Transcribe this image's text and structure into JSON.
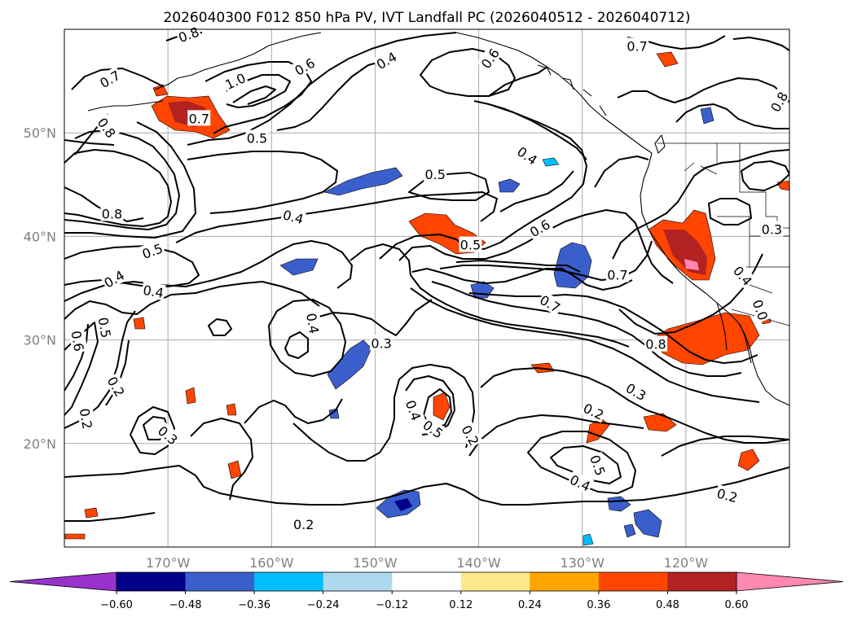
{
  "chart_data": {
    "type": "contour-map",
    "title": "2026040300 F012 850 hPa PV, IVT Landfall PC (2026040512 - 2026040712)",
    "lon_range": [
      -180,
      -110
    ],
    "lat_range": [
      10,
      60
    ],
    "lon_ticks": [
      {
        "lon": -170,
        "label": "170°W"
      },
      {
        "lon": -160,
        "label": "160°W"
      },
      {
        "lon": -150,
        "label": "150°W"
      },
      {
        "lon": -140,
        "label": "140°W"
      },
      {
        "lon": -130,
        "label": "130°W"
      },
      {
        "lon": -120,
        "label": "120°W"
      }
    ],
    "lat_ticks": [
      {
        "lat": 20,
        "label": "20°N"
      },
      {
        "lat": 30,
        "label": "30°N"
      },
      {
        "lat": 40,
        "label": "40°N"
      },
      {
        "lat": 50,
        "label": "50°N"
      }
    ],
    "contour_labels": [
      {
        "text": "0.8",
        "lon": -168,
        "lat": 59.5,
        "angle": -20
      },
      {
        "text": "0.7",
        "lon": -175.6,
        "lat": 55.2,
        "angle": -30
      },
      {
        "text": "1.0",
        "lon": -163.5,
        "lat": 55.0,
        "angle": -25
      },
      {
        "text": "0.6",
        "lon": -156.8,
        "lat": 56.4,
        "angle": -30
      },
      {
        "text": "0.4",
        "lon": -148.9,
        "lat": 57.0,
        "angle": -30
      },
      {
        "text": "0.6",
        "lon": -138.9,
        "lat": 57.2,
        "angle": -55
      },
      {
        "text": "0.7",
        "lon": -124.7,
        "lat": 58.4,
        "angle": 0
      },
      {
        "text": "0.8",
        "lon": -111.0,
        "lat": 53.0,
        "angle": -60
      },
      {
        "text": "0.7",
        "lon": -167.0,
        "lat": 51.4,
        "angle": 0
      },
      {
        "text": "0.8",
        "lon": -175.9,
        "lat": 50.5,
        "angle": 55
      },
      {
        "text": "0.5",
        "lon": -161.4,
        "lat": 49.5,
        "angle": 0
      },
      {
        "text": "0.4",
        "lon": -135.3,
        "lat": 47.8,
        "angle": 35
      },
      {
        "text": "0.5",
        "lon": -144.2,
        "lat": 46.0,
        "angle": 0
      },
      {
        "text": "0.8",
        "lon": -175.4,
        "lat": 42.2,
        "angle": 0
      },
      {
        "text": "0.4",
        "lon": -157.9,
        "lat": 41.9,
        "angle": 15
      },
      {
        "text": "0.3",
        "lon": -111.7,
        "lat": 40.7,
        "angle": 0
      },
      {
        "text": "0.6",
        "lon": -134.1,
        "lat": 40.8,
        "angle": -30
      },
      {
        "text": "0.5",
        "lon": -171.5,
        "lat": 38.6,
        "angle": -20
      },
      {
        "text": "0.5",
        "lon": -140.8,
        "lat": 39.2,
        "angle": 0
      },
      {
        "text": "0.4",
        "lon": -175.2,
        "lat": 35.9,
        "angle": -30
      },
      {
        "text": "0.4",
        "lon": -171.4,
        "lat": 34.7,
        "angle": 10
      },
      {
        "text": "0.7",
        "lon": -126.6,
        "lat": 36.3,
        "angle": 0
      },
      {
        "text": "0.4",
        "lon": -114.5,
        "lat": 36.2,
        "angle": 50
      },
      {
        "text": "0.7",
        "lon": -133.1,
        "lat": 33.5,
        "angle": 30
      },
      {
        "text": "0.0",
        "lon": -112.8,
        "lat": 32.9,
        "angle": 70
      },
      {
        "text": "0.5",
        "lon": -176.1,
        "lat": 31.2,
        "angle": 80
      },
      {
        "text": "0.6",
        "lon": -178.7,
        "lat": 29.9,
        "angle": 80
      },
      {
        "text": "0.4",
        "lon": -156.0,
        "lat": 31.6,
        "angle": 80
      },
      {
        "text": "0.3",
        "lon": -149.4,
        "lat": 29.7,
        "angle": 0
      },
      {
        "text": "0.8",
        "lon": -122.9,
        "lat": 29.6,
        "angle": 0
      },
      {
        "text": "0.3",
        "lon": -124.8,
        "lat": 25.0,
        "angle": 30
      },
      {
        "text": "0.2",
        "lon": -175.0,
        "lat": 25.5,
        "angle": 60
      },
      {
        "text": "0.2",
        "lon": -177.9,
        "lat": 22.4,
        "angle": 80
      },
      {
        "text": "0.4",
        "lon": -146.3,
        "lat": 23.2,
        "angle": 70
      },
      {
        "text": "0.5",
        "lon": -144.4,
        "lat": 21.4,
        "angle": 35
      },
      {
        "text": "0.2",
        "lon": -140.8,
        "lat": 20.8,
        "angle": 60
      },
      {
        "text": "0.2",
        "lon": -128.9,
        "lat": 23.1,
        "angle": 25
      },
      {
        "text": "0.3",
        "lon": -170.0,
        "lat": 20.8,
        "angle": 40
      },
      {
        "text": "0.5",
        "lon": -128.5,
        "lat": 17.9,
        "angle": 70
      },
      {
        "text": "0.4",
        "lon": -130.2,
        "lat": 16.2,
        "angle": 25
      },
      {
        "text": "0.2",
        "lon": -116.0,
        "lat": 15.0,
        "angle": 15
      },
      {
        "text": "0.2",
        "lon": -156.9,
        "lat": 12.2,
        "angle": 0
      }
    ],
    "colorbar": {
      "ticks": [
        "−0.60",
        "−0.48",
        "−0.36",
        "−0.24",
        "−0.12",
        "0.12",
        "0.24",
        "0.36",
        "0.48",
        "0.60"
      ],
      "colors": [
        "#9932cc",
        "#00008b",
        "#3a5fcd",
        "#00bfff",
        "#add8f0",
        "#ffffff",
        "#ffe88a",
        "#ffa500",
        "#ff4500",
        "#b22222",
        "#ff88b0"
      ]
    }
  }
}
